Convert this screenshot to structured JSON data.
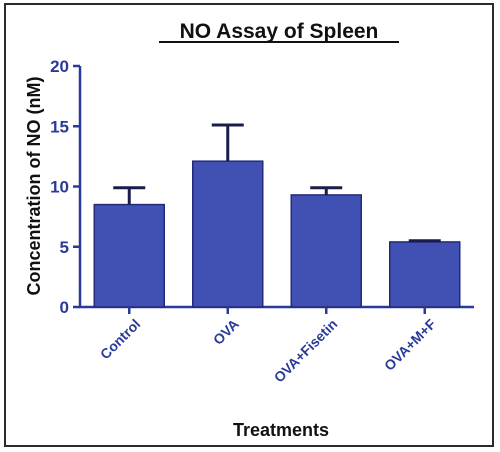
{
  "chart_data": {
    "type": "bar",
    "title": "NO Assay of Spleen",
    "xlabel": "Treatments",
    "ylabel": "Concentration of NO (nM)",
    "ylim": [
      0,
      20
    ],
    "yticks": [
      0,
      5,
      10,
      15,
      20
    ],
    "grid": false,
    "categories": [
      "Control",
      "OVA",
      "OVA+Fisetin",
      "OVA+M+F"
    ],
    "values": [
      8.5,
      12.1,
      9.3,
      5.4
    ],
    "error_upper": [
      1.4,
      3.0,
      0.6,
      0.1
    ]
  },
  "colors": {
    "bar_fill": "#4150b3",
    "bar_stroke": "#232a7a",
    "axis": "#2a3a9a",
    "error_bar": "#1a1d4a"
  }
}
